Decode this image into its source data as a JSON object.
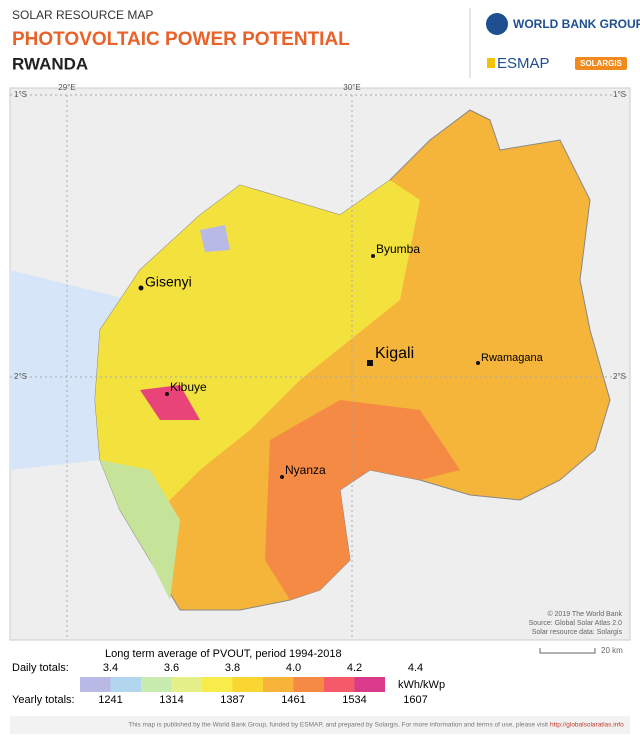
{
  "header": {
    "kicker": "SOLAR RESOURCE MAP",
    "title": "PHOTOVOLTAIC POWER POTENTIAL",
    "country": "RWANDA",
    "logos": [
      "WORLD BANK GROUP",
      "ESMAP",
      "SOLARGIS"
    ]
  },
  "map": {
    "graticule": {
      "lon": [
        "29°E",
        "30°E"
      ],
      "lat": [
        "1°S",
        "2°S"
      ]
    },
    "places": [
      {
        "label": "Gisenyi"
      },
      {
        "label": "Byumba"
      },
      {
        "label": "Kigali"
      },
      {
        "label": "Rwamagana"
      },
      {
        "label": "Kibuye"
      },
      {
        "label": "Nyanza"
      }
    ],
    "credits": [
      "© 2019 The World Bank",
      "Source: Global Solar Atlas 2.0",
      "Solar resource data: Solargis"
    ],
    "scale": "20 km"
  },
  "legend": {
    "title": "Long term average of PVOUT, period 1994-2018",
    "daily_label": "Daily totals:",
    "yearly_label": "Yearly totals:",
    "unit": "kWh/kWp",
    "daily": [
      "3.4",
      "3.6",
      "3.8",
      "4.0",
      "4.2",
      "4.4"
    ],
    "yearly": [
      "1241",
      "1314",
      "1387",
      "1461",
      "1534",
      "1607"
    ],
    "colors": [
      "#b9b9e6",
      "#b3d6ef",
      "#c8ebb0",
      "#e6f08a",
      "#f7ec4a",
      "#f9d632",
      "#f7b33a",
      "#f58a45",
      "#f45a6a",
      "#d93a8a"
    ]
  },
  "footer": {
    "text": "This map is published by the World Bank Group, funded by ESMAP, and prepared by Solargis. For more information and terms of use, please visit",
    "link": "http://globalsolaratlas.info"
  }
}
